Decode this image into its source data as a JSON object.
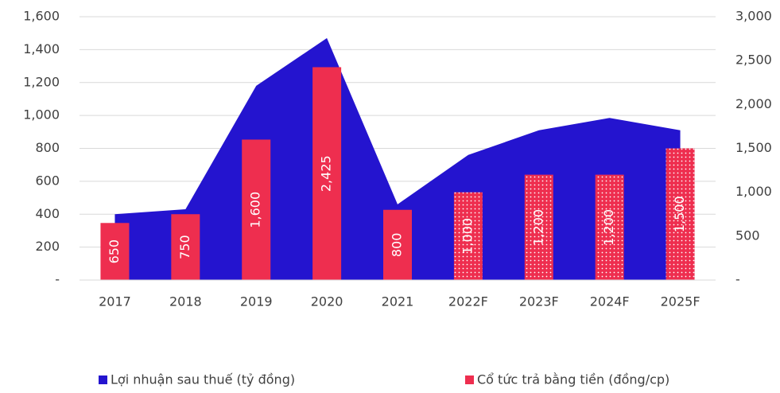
{
  "chart_data": {
    "type": "bar_area",
    "categories": [
      "2017",
      "2018",
      "2019",
      "2020",
      "2021",
      "2022F",
      "2023F",
      "2024F",
      "2025F"
    ],
    "series": [
      {
        "name": "Lợi nhuận sau thuế (tỷ đồng)",
        "color": "#2414cf",
        "kind": "area",
        "values": [
          400,
          430,
          1180,
          1470,
          460,
          760,
          910,
          985,
          910
        ]
      },
      {
        "name": "Cổ tức trả bằng tiền (đồng/cp)",
        "color": "#ee2e4f",
        "kind": "bar",
        "axis": "y2",
        "values": [
          650,
          750,
          1600,
          2425,
          800,
          1000,
          1200,
          1200,
          1500
        ],
        "value_labels": [
          "650",
          "750",
          "1,600",
          "2,425",
          "800",
          "1,000",
          "1,200",
          "1,200",
          "1,500"
        ],
        "pattern": [
          "solid",
          "solid",
          "solid",
          "solid",
          "solid",
          "dotted",
          "dotted",
          "dotted",
          "dotted"
        ]
      }
    ],
    "ylim": [
      0,
      1600
    ],
    "yticks": [
      {
        "value": 0,
        "label": "-"
      },
      200,
      400,
      600,
      800,
      {
        "value": 1000,
        "label": "1,000"
      },
      {
        "value": 1200,
        "label": "1,200"
      },
      {
        "value": 1400,
        "label": "1,400"
      },
      {
        "value": 1600,
        "label": "1,600"
      }
    ],
    "y2lim": [
      0,
      3000
    ],
    "y2ticks": [
      {
        "value": 0,
        "label": "-"
      },
      500,
      {
        "value": 1000,
        "label": "1,000"
      },
      {
        "value": 1500,
        "label": "1,500"
      },
      {
        "value": 2000,
        "label": "2,000"
      },
      {
        "value": 2500,
        "label": "2,500"
      },
      {
        "value": 3000,
        "label": "3,000"
      }
    ],
    "grid": true,
    "legend": "bottom"
  }
}
